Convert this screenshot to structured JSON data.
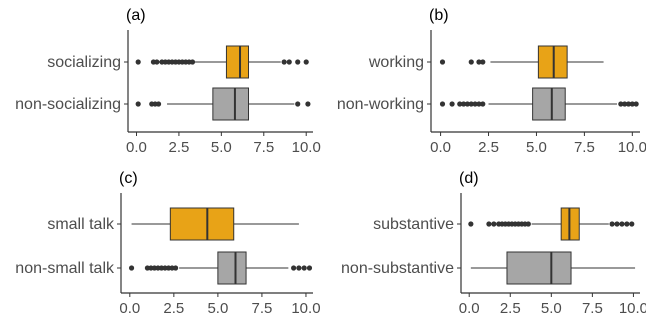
{
  "colors": {
    "highlight": "#E8A317",
    "baseline": "#A6A6A6",
    "outline": "#333333",
    "outlier": "#333333"
  },
  "chart_data": [
    {
      "type": "boxplot",
      "panel_label": "(a)",
      "xlim": [
        -0.5,
        10.4
      ],
      "xticks": [
        "0.0",
        "2.5",
        "5.0",
        "7.5",
        "10.0"
      ],
      "xtick_values": [
        0,
        2.5,
        5,
        7.5,
        10
      ],
      "boxes": [
        {
          "name": "socializing",
          "color": "highlight",
          "whisker_low": 1.3,
          "q1": 5.3,
          "median": 6.1,
          "q3": 6.6,
          "whisker_high": 8.5,
          "outliers": [
            0.1,
            1.0,
            1.2,
            1.5,
            1.7,
            1.9,
            2.1,
            2.3,
            2.5,
            2.7,
            2.9,
            3.1,
            3.3,
            8.7,
            9.0,
            9.5,
            10.0
          ]
        },
        {
          "name": "non-socializing",
          "color": "baseline",
          "whisker_low": 1.8,
          "q1": 4.5,
          "median": 5.8,
          "q3": 6.6,
          "whisker_high": 9.3,
          "outliers": [
            0.1,
            0.9,
            1.1,
            1.3,
            9.5,
            10.1
          ]
        }
      ]
    },
    {
      "type": "boxplot",
      "panel_label": "(b)",
      "xlim": [
        -0.5,
        10.4
      ],
      "xticks": [
        "0.0",
        "2.5",
        "5.0",
        "7.5",
        "10.0"
      ],
      "xtick_values": [
        0,
        2.5,
        5,
        7.5,
        10
      ],
      "boxes": [
        {
          "name": "working",
          "color": "highlight",
          "whisker_low": 2.6,
          "q1": 5.1,
          "median": 5.9,
          "q3": 6.6,
          "whisker_high": 8.5,
          "outliers": [
            0.1,
            1.6,
            2.0,
            2.2
          ]
        },
        {
          "name": "non-working",
          "color": "baseline",
          "whisker_low": 2.5,
          "q1": 4.8,
          "median": 5.8,
          "q3": 6.5,
          "whisker_high": 9.2,
          "outliers": [
            0.1,
            0.6,
            1.0,
            1.2,
            1.4,
            1.6,
            1.8,
            2.0,
            2.2,
            9.4,
            9.6,
            9.8,
            10.0,
            10.2
          ]
        }
      ]
    },
    {
      "type": "boxplot",
      "panel_label": "(c)",
      "xlim": [
        -0.5,
        10.4
      ],
      "xticks": [
        "0.0",
        "2.5",
        "5.0",
        "7.5",
        "10.0"
      ],
      "xtick_values": [
        0,
        2.5,
        5,
        7.5,
        10
      ],
      "boxes": [
        {
          "name": "small talk",
          "color": "highlight",
          "whisker_low": 0.1,
          "q1": 2.3,
          "median": 4.4,
          "q3": 5.9,
          "whisker_high": 9.6,
          "outliers": []
        },
        {
          "name": "non-small talk",
          "color": "baseline",
          "whisker_low": 2.8,
          "q1": 5.0,
          "median": 6.0,
          "q3": 6.6,
          "whisker_high": 9.0,
          "outliers": [
            0.1,
            1.0,
            1.2,
            1.4,
            1.6,
            1.8,
            2.0,
            2.2,
            2.4,
            2.6,
            9.3,
            9.6,
            9.9,
            10.2
          ]
        }
      ]
    },
    {
      "type": "boxplot",
      "panel_label": "(d)",
      "xlim": [
        -0.5,
        10.4
      ],
      "xticks": [
        "0.0",
        "2.5",
        "5.0",
        "7.5",
        "10.0"
      ],
      "xtick_values": [
        0,
        2.5,
        5,
        7.5,
        10
      ],
      "boxes": [
        {
          "name": "substantive",
          "color": "highlight",
          "whisker_low": 3.8,
          "q1": 5.6,
          "median": 6.1,
          "q3": 6.7,
          "whisker_high": 8.5,
          "outliers": [
            0.1,
            1.2,
            1.5,
            1.8,
            2.0,
            2.2,
            2.4,
            2.6,
            2.8,
            3.0,
            3.2,
            3.4,
            3.6,
            8.7,
            9.0,
            9.3,
            9.6,
            9.9
          ]
        },
        {
          "name": "non-substantive",
          "color": "baseline",
          "whisker_low": 0.1,
          "q1": 2.3,
          "median": 5.0,
          "q3": 6.2,
          "whisker_high": 10.1,
          "outliers": []
        }
      ]
    }
  ]
}
